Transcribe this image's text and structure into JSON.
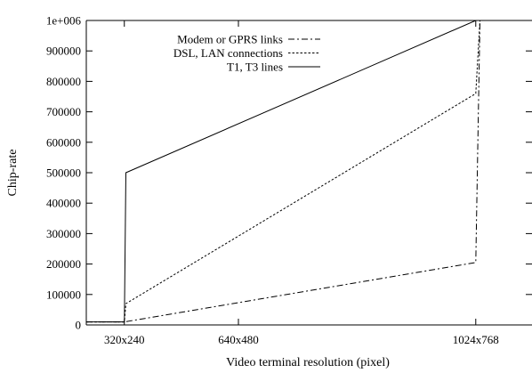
{
  "chart_data": {
    "type": "line",
    "xlabel": "Video terminal resolution (pixel)",
    "ylabel": "Chip-rate",
    "x_ticks": [
      {
        "pixels": 76800,
        "label": "320x240"
      },
      {
        "pixels": 307200,
        "label": "640x480"
      },
      {
        "pixels": 786432,
        "label": "1024x768"
      }
    ],
    "xlim": [
      0,
      900000
    ],
    "y_tick_labels": [
      "0",
      "100000",
      "200000",
      "300000",
      "400000",
      "500000",
      "600000",
      "700000",
      "800000",
      "900000",
      "1e+006"
    ],
    "y_tick_values": [
      0,
      100000,
      200000,
      300000,
      400000,
      500000,
      600000,
      700000,
      800000,
      900000,
      1000000
    ],
    "ylim": [
      0,
      1000000
    ],
    "legend_position": "top-center",
    "grid": false,
    "series": [
      {
        "name": "Modem or GPRS links",
        "dash": "dash-dot",
        "points": [
          [
            0,
            10000
          ],
          [
            76800,
            10000
          ],
          [
            786432,
            205000
          ],
          [
            795000,
            1000000
          ],
          [
            900000,
            1000000
          ]
        ]
      },
      {
        "name": "DSL, LAN connections",
        "dash": "dotted",
        "points": [
          [
            0,
            10000
          ],
          [
            76800,
            10000
          ],
          [
            80000,
            70000
          ],
          [
            786432,
            760000
          ],
          [
            795000,
            1000000
          ],
          [
            900000,
            1000000
          ]
        ]
      },
      {
        "name": "T1, T3 lines",
        "dash": "solid",
        "points": [
          [
            0,
            10000
          ],
          [
            76800,
            10000
          ],
          [
            80000,
            500000
          ],
          [
            786432,
            1000000
          ],
          [
            900000,
            1000000
          ]
        ]
      }
    ]
  }
}
